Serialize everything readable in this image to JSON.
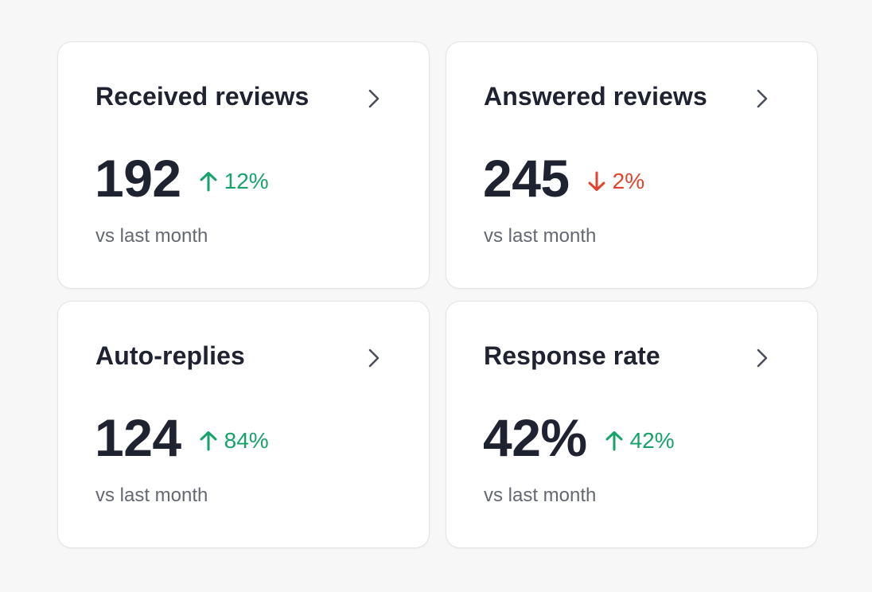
{
  "colors": {
    "background": "#f7f7f7",
    "card": "#ffffff",
    "title": "#1f2230",
    "muted": "#646874",
    "positive": "#16a36a",
    "negative": "#e0442c"
  },
  "cards": [
    {
      "title": "Received reviews",
      "value": "192",
      "delta": "12%",
      "trend": "up",
      "subtitle": "vs last month"
    },
    {
      "title": "Answered reviews",
      "value": "245",
      "delta": "2%",
      "trend": "down",
      "subtitle": "vs last month"
    },
    {
      "title": "Auto-replies",
      "value": "124",
      "delta": "84%",
      "trend": "up",
      "subtitle": "vs last month"
    },
    {
      "title": "Response rate",
      "value": "42%",
      "delta": "42%",
      "trend": "up",
      "subtitle": "vs last month"
    }
  ]
}
